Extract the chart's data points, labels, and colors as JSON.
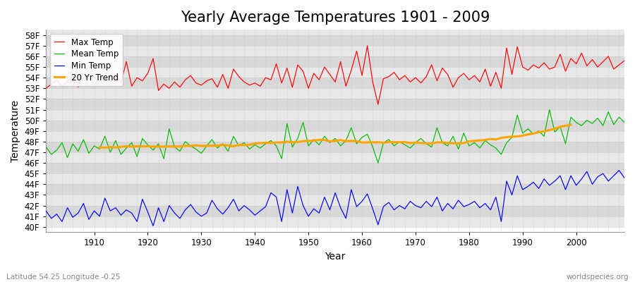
{
  "title": "Yearly Average Temperatures 1901 - 2009",
  "xlabel": "Year",
  "ylabel": "Temperature",
  "yticks": [
    40,
    41,
    42,
    43,
    44,
    45,
    46,
    47,
    48,
    49,
    50,
    51,
    52,
    53,
    54,
    55,
    56,
    57,
    58
  ],
  "ytick_labels": [
    "40F",
    "41F",
    "42F",
    "43F",
    "44F",
    "45F",
    "46F",
    "47F",
    "48F",
    "49F",
    "50F",
    "51F",
    "52F",
    "53F",
    "54F",
    "55F",
    "56F",
    "57F",
    "58F"
  ],
  "ylim": [
    39.5,
    58.5
  ],
  "xlim": [
    1901,
    2009
  ],
  "bg_color": "#f0f0f0",
  "band_light": "#e8e8e8",
  "band_dark": "#d8d8d8",
  "grid_color": "#cccccc",
  "line_colors": {
    "max": "#ff0000",
    "mean": "#00bb00",
    "min": "#0000ff",
    "trend": "#ffa500"
  },
  "legend_labels": [
    "Max Temp",
    "Mean Temp",
    "Min Temp",
    "20 Yr Trend"
  ],
  "footer_left": "Latitude 54.25 Longitude -0.25",
  "footer_right": "worldspecies.org",
  "title_fontsize": 15,
  "axis_label_fontsize": 10,
  "tick_fontsize": 8.5,
  "legend_fontsize": 8.5
}
